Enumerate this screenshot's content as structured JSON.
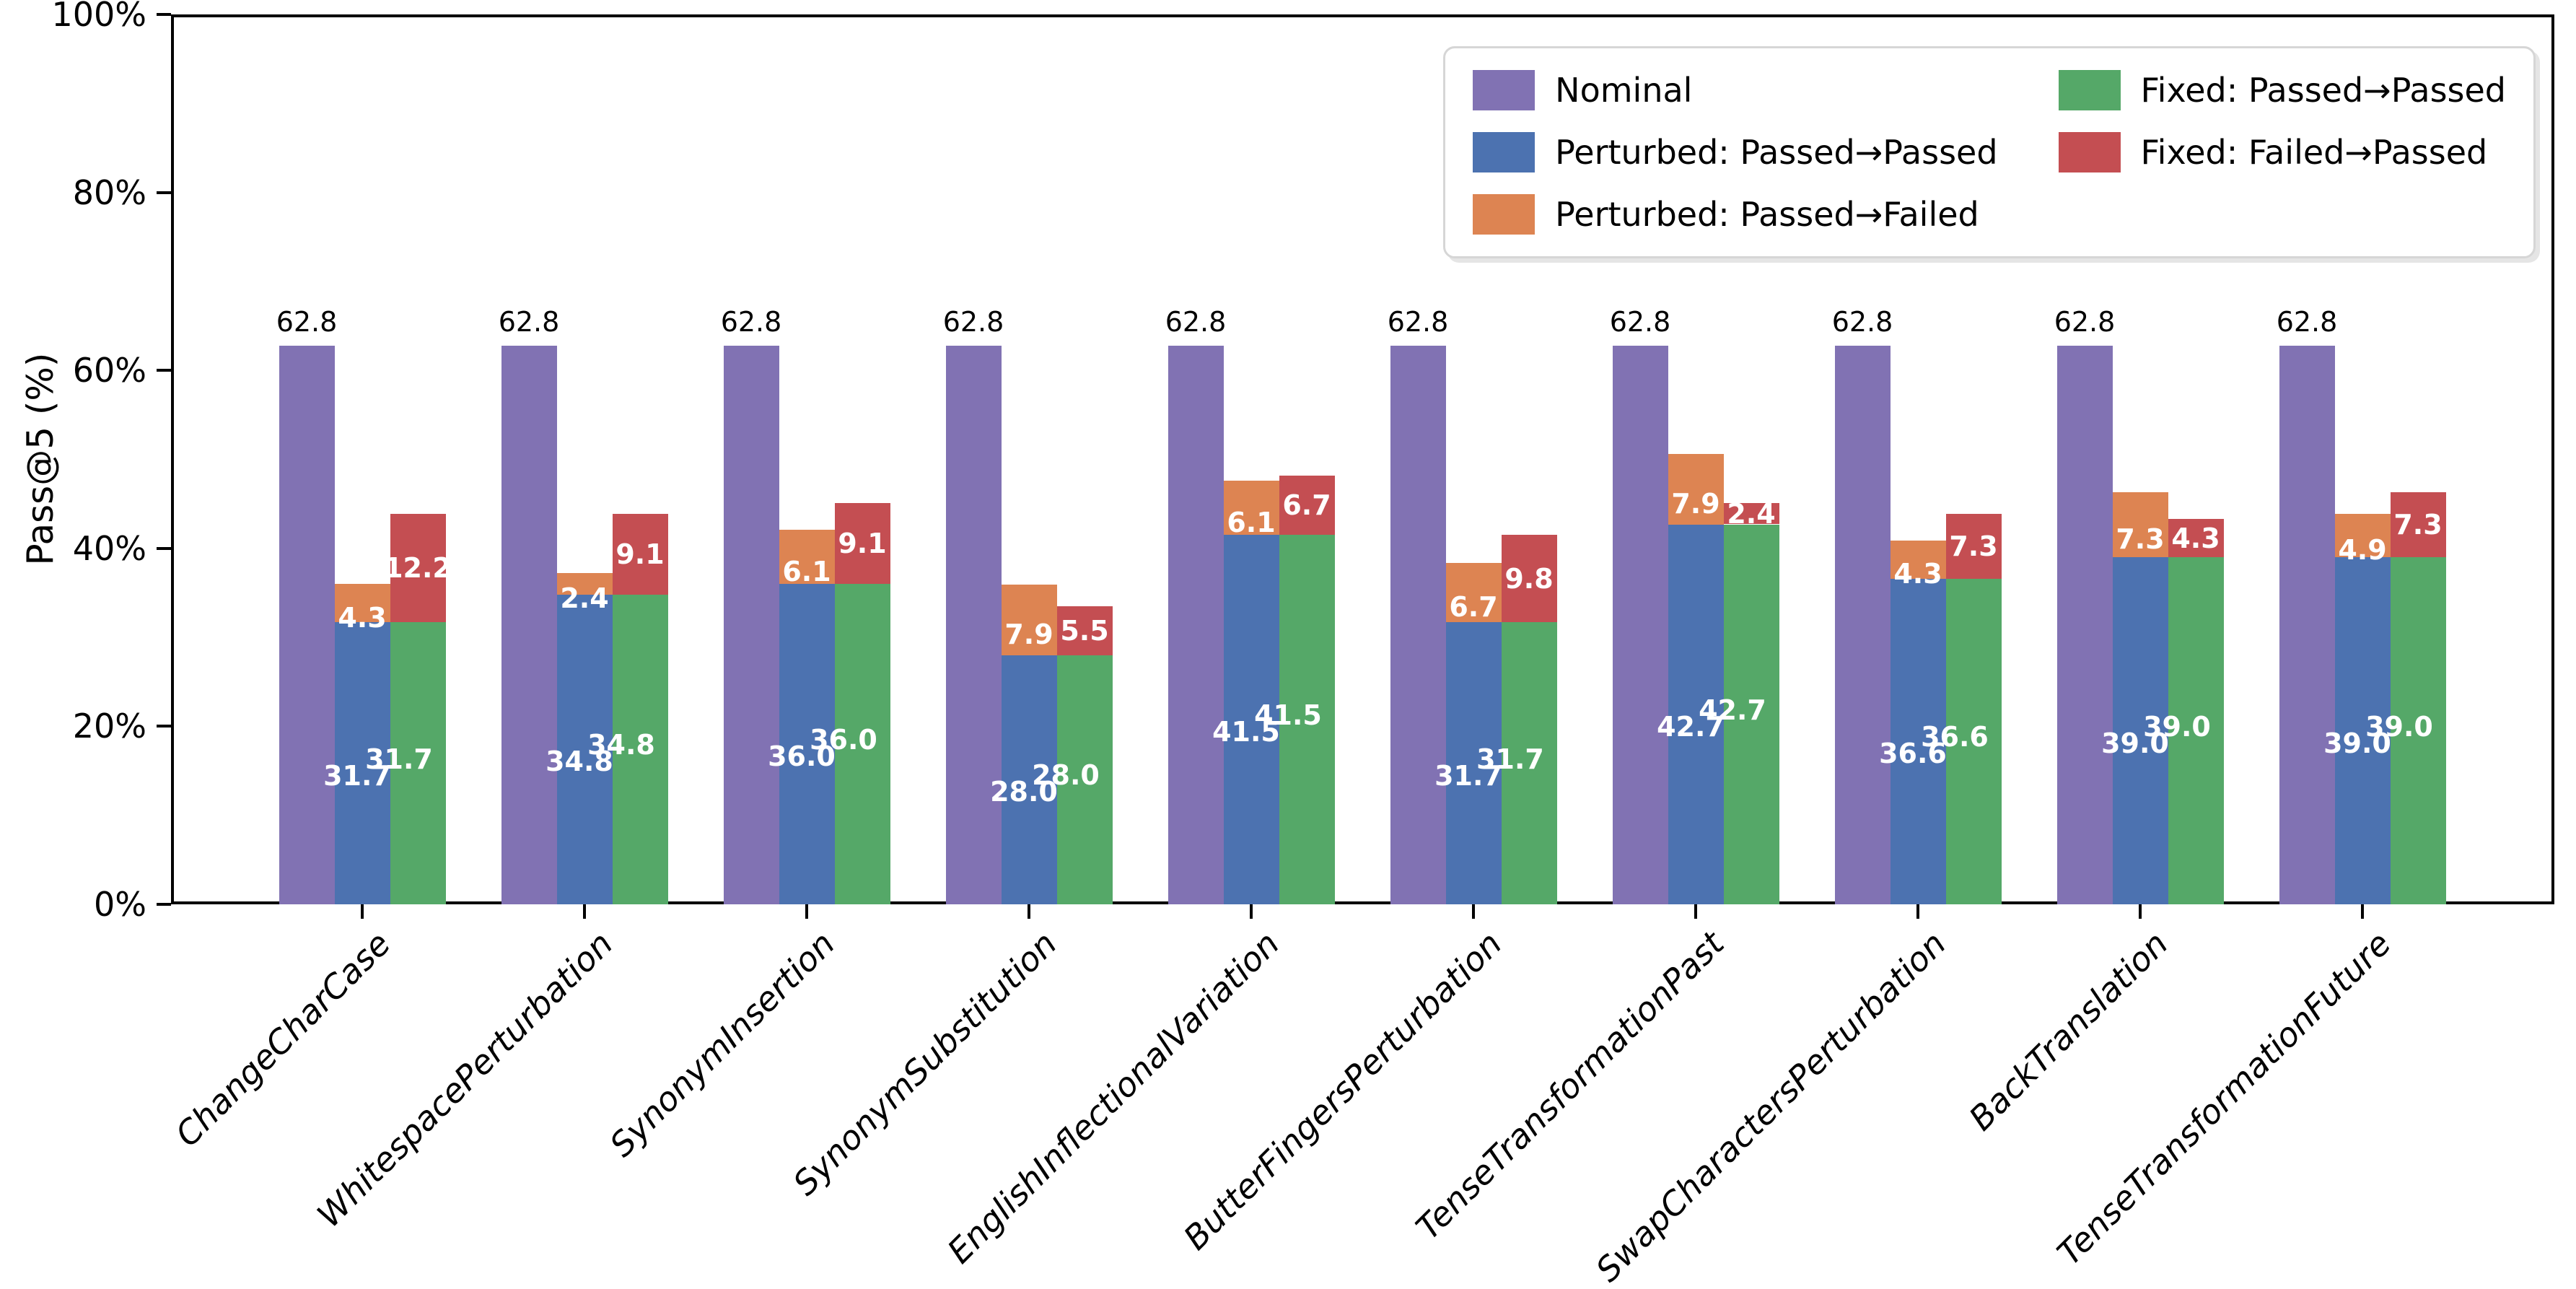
{
  "chart_data": {
    "type": "bar",
    "title": "",
    "ylabel": "Pass@5 (%)",
    "ylim": [
      0,
      100
    ],
    "grid": false,
    "legend_position": "upper right",
    "y_ticks": [
      {
        "value": 0,
        "label": "0%"
      },
      {
        "value": 20,
        "label": "20%"
      },
      {
        "value": 40,
        "label": "40%"
      },
      {
        "value": 60,
        "label": "60%"
      },
      {
        "value": 80,
        "label": "80%"
      },
      {
        "value": 100,
        "label": "100%"
      }
    ],
    "categories": [
      "ChangeCharCase",
      "WhitespacePerturbation",
      "SynonymInsertion",
      "SynonymSubstitution",
      "EnglishInflectionalVariation",
      "ButterFingersPerturbation",
      "TenseTransformationPast",
      "SwapCharactersPerturbation",
      "BackTranslation",
      "TenseTransformationFuture"
    ],
    "series": [
      {
        "name": "Nominal",
        "color": "#8172B3",
        "values": [
          62.8,
          62.8,
          62.8,
          62.8,
          62.8,
          62.8,
          62.8,
          62.8,
          62.8,
          62.8
        ]
      },
      {
        "name": "Perturbed: Passed→Passed",
        "color": "#4C72B0",
        "values": [
          31.7,
          34.8,
          36.0,
          28.0,
          41.5,
          31.7,
          42.7,
          36.6,
          39.0,
          39.0
        ]
      },
      {
        "name": "Perturbed: Passed→Failed",
        "color": "#DD8452",
        "values": [
          4.3,
          2.4,
          6.1,
          7.9,
          6.1,
          6.7,
          7.9,
          4.3,
          7.3,
          4.9
        ]
      },
      {
        "name": "Fixed: Passed→Passed",
        "color": "#55A868",
        "values": [
          31.7,
          34.8,
          36.0,
          28.0,
          41.5,
          31.7,
          42.7,
          36.6,
          39.0,
          39.0
        ]
      },
      {
        "name": "Fixed: Failed→Passed",
        "color": "#C44E52",
        "values": [
          12.2,
          9.1,
          9.1,
          5.5,
          6.7,
          9.8,
          2.4,
          7.3,
          4.3,
          7.3
        ]
      }
    ]
  }
}
